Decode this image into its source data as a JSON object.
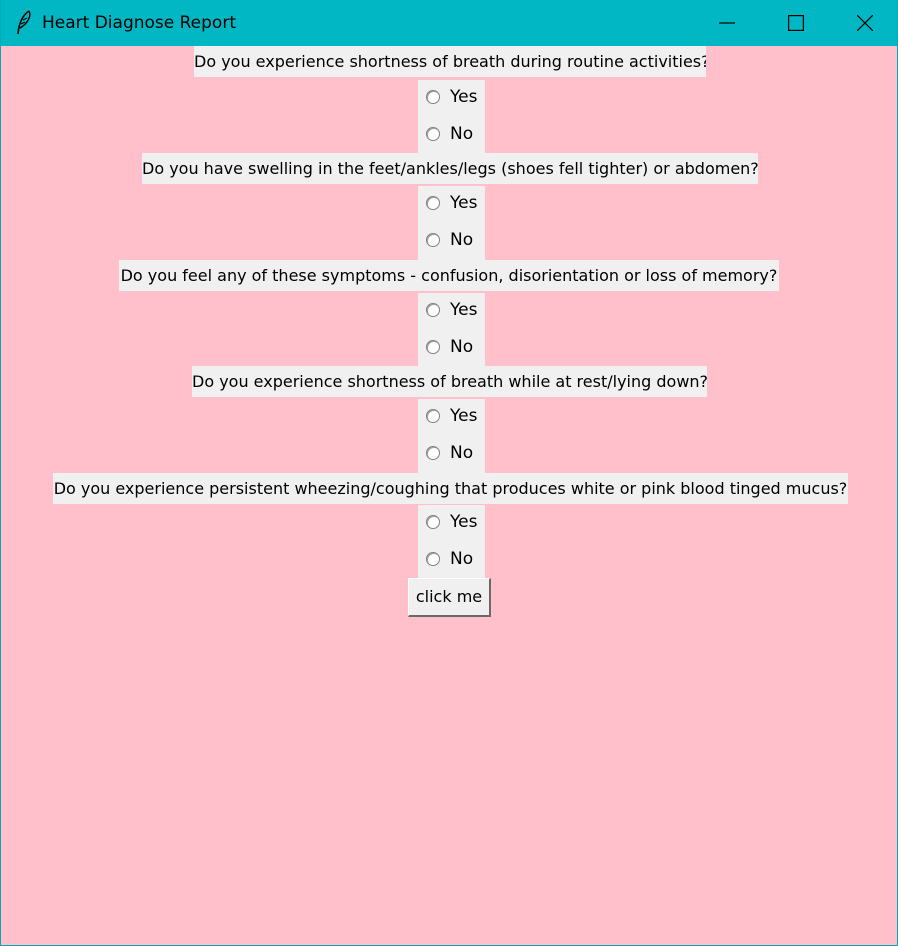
{
  "window": {
    "title": "Heart Diagnose Report",
    "background_color": "#ffc0cb",
    "titlebar_color": "#00b7c3",
    "app_icon": "feather-icon",
    "controls": [
      "minimize-icon",
      "maximize-icon",
      "close-icon"
    ]
  },
  "questions": [
    {
      "text": "Do you experience shortness of breath during routine activities?",
      "options": [
        "Yes",
        "No"
      ]
    },
    {
      "text": "Do you have swelling in the feet/ankles/legs (shoes fell tighter) or abdomen?",
      "options": [
        "Yes",
        "No"
      ]
    },
    {
      "text": "Do you feel any of these symptoms - confusion, disorientation or loss of memory?",
      "options": [
        "Yes",
        "No"
      ]
    },
    {
      "text": "Do you experience shortness of breath while at rest/lying down?",
      "options": [
        "Yes",
        "No"
      ]
    },
    {
      "text": "Do you experience persistent wheezing/coughing that produces white or pink blood tinged mucus?",
      "options": [
        "Yes",
        "No"
      ]
    }
  ],
  "submit": {
    "label": "click me"
  }
}
